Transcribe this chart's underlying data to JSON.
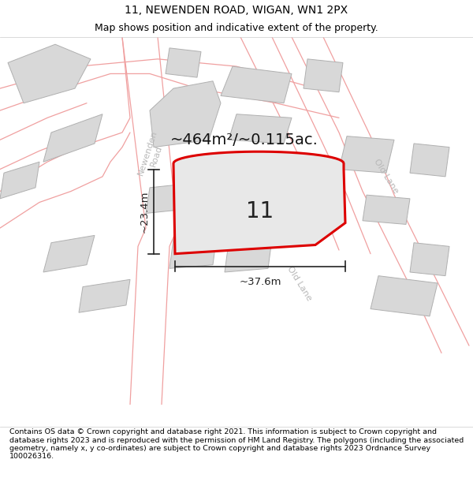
{
  "title_line1": "11, NEWENDEN ROAD, WIGAN, WN1 2PX",
  "title_line2": "Map shows position and indicative extent of the property.",
  "footer_text": "Contains OS data © Crown copyright and database right 2021. This information is subject to Crown copyright and database rights 2023 and is reproduced with the permission of HM Land Registry. The polygons (including the associated geometry, namely x, y co-ordinates) are subject to Crown copyright and database rights 2023 Ordnance Survey 100026316.",
  "area_text": "~464m²/~0.115ac.",
  "width_label": "~37.6m",
  "height_label": "~23.4m",
  "property_number": "11",
  "map_bg_color": "#ffffff",
  "building_fill": "#e0e0e0",
  "building_edge": "#b0b0b0",
  "road_outline_color": "#f0a0a0",
  "road_fill_color": "#ffffff",
  "plot_fill": "#e8e8e8",
  "plot_edge_color": "#dd0000",
  "plot_edge_width": 2.2,
  "title_fontsize": 10,
  "subtitle_fontsize": 9,
  "footer_fontsize": 6.8,
  "area_fontsize": 14,
  "number_fontsize": 20,
  "dim_label_fontsize": 9.5,
  "road_label_color": "#b8b8b8",
  "road_label_fontsize": 8
}
